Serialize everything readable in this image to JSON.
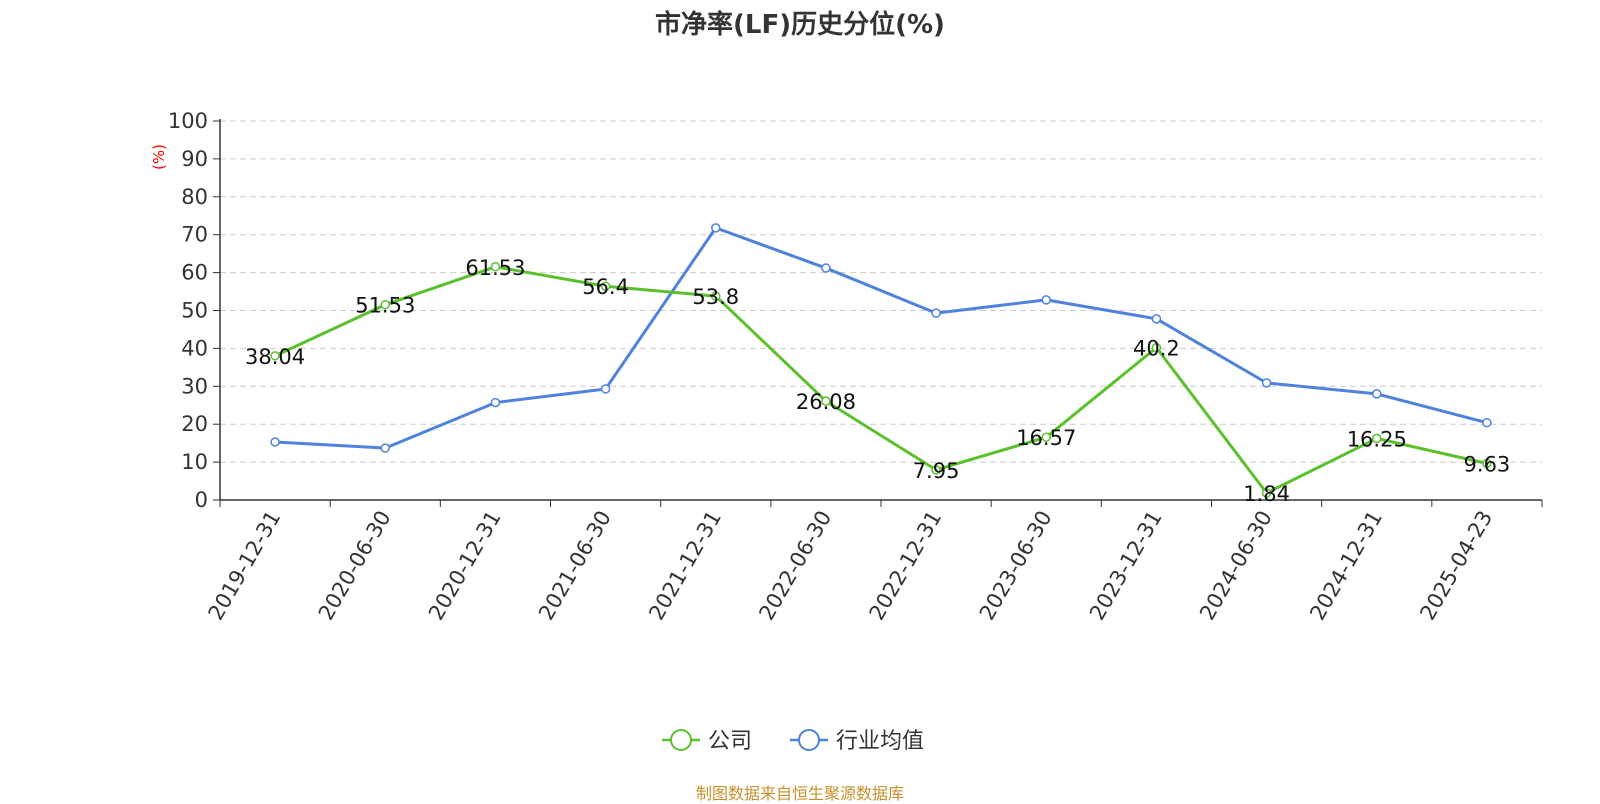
{
  "chart_data": {
    "type": "line",
    "title": "市净率(LF)历史分位(%)",
    "ylabel": "(%)",
    "ylim": [
      0,
      100
    ],
    "yticks": [
      0,
      10,
      20,
      30,
      40,
      50,
      60,
      70,
      80,
      90,
      100
    ],
    "grid": true,
    "legend_position": "bottom",
    "categories": [
      "2019-12-31",
      "2020-06-30",
      "2020-12-31",
      "2021-06-30",
      "2021-12-31",
      "2022-06-30",
      "2022-12-31",
      "2023-06-30",
      "2023-12-31",
      "2024-06-30",
      "2024-12-31",
      "2025-04-23"
    ],
    "series": [
      {
        "name": "公司",
        "color": "#5ac12c",
        "show_labels": true,
        "values": [
          38.04,
          51.53,
          61.53,
          56.4,
          53.8,
          26.08,
          7.95,
          16.57,
          40.2,
          1.84,
          16.25,
          9.63
        ],
        "labels": [
          "38.04",
          "51.53",
          "61.53",
          "56.4",
          "53.8",
          "26.08",
          "7.95",
          "16.57",
          "40.2",
          "1.84",
          "16.25",
          "9.63"
        ]
      },
      {
        "name": "行业均值",
        "color": "#4f82dc",
        "show_labels": false,
        "values": [
          15.3,
          13.7,
          25.7,
          29.3,
          71.8,
          61.2,
          49.3,
          52.8,
          47.8,
          30.9,
          28.0,
          20.4
        ]
      }
    ]
  },
  "source": "制图数据来自恒生聚源数据库"
}
